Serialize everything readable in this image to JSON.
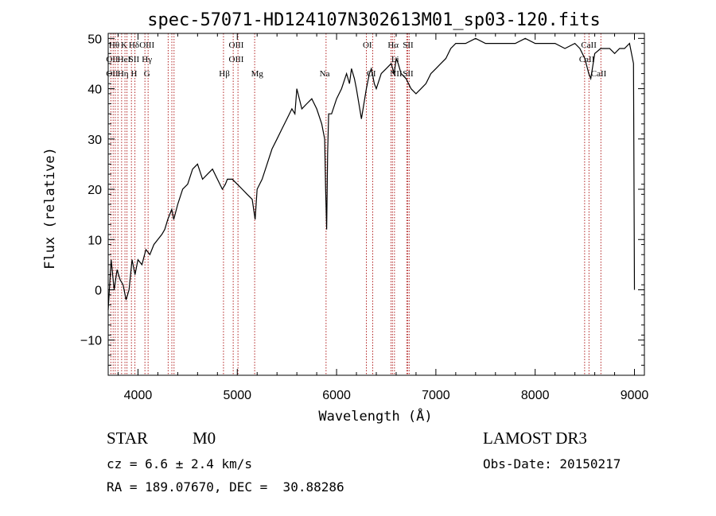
{
  "chart_data": {
    "type": "line",
    "title": "spec-57071-HD124107N302613M01_sp03-120.fits",
    "xlabel": "Wavelength (Å)",
    "ylabel": "Flux (relative)",
    "xlim": [
      3700,
      9100
    ],
    "ylim": [
      -17,
      51
    ],
    "xticks": [
      4000,
      5000,
      6000,
      7000,
      8000,
      9000
    ],
    "yticks": [
      -10,
      0,
      10,
      20,
      30,
      40,
      50
    ],
    "grid": false,
    "line_color": "#000000",
    "marker_color": "#b22222",
    "series": [
      {
        "x": [
          3700,
          3730,
          3760,
          3790,
          3820,
          3850,
          3880,
          3910,
          3940,
          3970,
          4000,
          4040,
          4080,
          4120,
          4160,
          4200,
          4240,
          4270,
          4300,
          4320,
          4340,
          4360,
          4400,
          4450,
          4500,
          4550,
          4600,
          4650,
          4700,
          4750,
          4800,
          4850,
          4880,
          4900,
          4950,
          5000,
          5050,
          5100,
          5150,
          5180,
          5200,
          5250,
          5300,
          5350,
          5400,
          5450,
          5500,
          5550,
          5580,
          5600,
          5650,
          5700,
          5750,
          5800,
          5850,
          5880,
          5890,
          5900,
          5910,
          5920,
          5950,
          6000,
          6050,
          6100,
          6130,
          6150,
          6180,
          6200,
          6250,
          6300,
          6330,
          6350,
          6380,
          6400,
          6450,
          6500,
          6550,
          6580,
          6600,
          6620,
          6650,
          6700,
          6750,
          6800,
          6850,
          6900,
          6950,
          7000,
          7050,
          7100,
          7150,
          7200,
          7300,
          7400,
          7500,
          7600,
          7700,
          7800,
          7900,
          8000,
          8100,
          8200,
          8300,
          8400,
          8450,
          8500,
          8540,
          8560,
          8600,
          8660,
          8700,
          8750,
          8800,
          8850,
          8900,
          8950,
          8990,
          9000
        ],
        "y": [
          -4,
          6,
          0,
          4,
          2,
          1,
          -2,
          0,
          6,
          3,
          6,
          5,
          8,
          7,
          9,
          10,
          11,
          12,
          14,
          15,
          16,
          14,
          17,
          20,
          21,
          24,
          25,
          22,
          23,
          24,
          22,
          20,
          21,
          22,
          22,
          21,
          20,
          19,
          18,
          14,
          20,
          22,
          25,
          28,
          30,
          32,
          34,
          36,
          35,
          40,
          36,
          37,
          38,
          36,
          33,
          30,
          20,
          12,
          27,
          35,
          35,
          38,
          40,
          43,
          41,
          44,
          42,
          40,
          34,
          40,
          43,
          44,
          41,
          40,
          43,
          44,
          45,
          43,
          46,
          45,
          43,
          42,
          40,
          39,
          40,
          41,
          43,
          44,
          45,
          46,
          48,
          49,
          49,
          50,
          49,
          49,
          49,
          49,
          50,
          49,
          49,
          49,
          48,
          49,
          48,
          46,
          43,
          42,
          47,
          48,
          48,
          48,
          47,
          48,
          48,
          49,
          45,
          0
        ]
      }
    ],
    "line_markers": [
      {
        "x": 3727,
        "label": "OII"
      },
      {
        "x": 3750,
        "label": "Hθ"
      },
      {
        "x": 3771,
        "label": "Hη"
      },
      {
        "x": 3798,
        "label": "Hη"
      },
      {
        "x": 3835,
        "label": "Hη"
      },
      {
        "x": 3869,
        "label": "HeI"
      },
      {
        "x": 3889,
        "label": "Hζ"
      },
      {
        "x": 3934,
        "label": "K"
      },
      {
        "x": 3969,
        "label": "H"
      },
      {
        "x": 4070,
        "label": "SII"
      },
      {
        "x": 4102,
        "label": "Hδ"
      },
      {
        "x": 4304,
        "label": "G"
      },
      {
        "x": 4341,
        "label": "Hγ"
      },
      {
        "x": 4363,
        "label": "OIII"
      },
      {
        "x": 4861,
        "label": "Hβ"
      },
      {
        "x": 4959,
        "label": "OIII"
      },
      {
        "x": 5007,
        "label": "OIII"
      },
      {
        "x": 5175,
        "label": "Mg"
      },
      {
        "x": 5894,
        "label": "Na"
      },
      {
        "x": 6300,
        "label": "OI"
      },
      {
        "x": 6364,
        "label": "OI"
      },
      {
        "x": 6548,
        "label": "NII"
      },
      {
        "x": 6563,
        "label": "Hα"
      },
      {
        "x": 6583,
        "label": "NII"
      },
      {
        "x": 6707,
        "label": "Li"
      },
      {
        "x": 6716,
        "label": "SII"
      },
      {
        "x": 6731,
        "label": "SII"
      },
      {
        "x": 8498,
        "label": "CaII"
      },
      {
        "x": 8542,
        "label": "CaII"
      },
      {
        "x": 8662,
        "label": "CaII"
      }
    ],
    "marker_labels": [
      {
        "x": 3760,
        "row": 0,
        "text": "Hθ"
      },
      {
        "x": 3860,
        "row": 0,
        "text": "K"
      },
      {
        "x": 3960,
        "row": 0,
        "text": "Hδ"
      },
      {
        "x": 4090,
        "row": 0,
        "text": "OIII"
      },
      {
        "x": 4990,
        "row": 0,
        "text": "OIII"
      },
      {
        "x": 6310,
        "row": 0,
        "text": "OI"
      },
      {
        "x": 6570,
        "row": 0,
        "text": "Hα"
      },
      {
        "x": 6720,
        "row": 0,
        "text": "SII"
      },
      {
        "x": 8540,
        "row": 0,
        "text": "CaII"
      },
      {
        "x": 3740,
        "row": 1,
        "text": "OII"
      },
      {
        "x": 3860,
        "row": 1,
        "text": "HeI"
      },
      {
        "x": 3960,
        "row": 1,
        "text": "SII"
      },
      {
        "x": 4090,
        "row": 1,
        "text": "Hγ"
      },
      {
        "x": 4990,
        "row": 1,
        "text": "OIII"
      },
      {
        "x": 6590,
        "row": 1,
        "text": "Li"
      },
      {
        "x": 8520,
        "row": 1,
        "text": "CaII"
      },
      {
        "x": 3740,
        "row": 2,
        "text": "OII"
      },
      {
        "x": 3850,
        "row": 2,
        "text": "Hη"
      },
      {
        "x": 3960,
        "row": 2,
        "text": "H"
      },
      {
        "x": 4090,
        "row": 2,
        "text": "G"
      },
      {
        "x": 4870,
        "row": 2,
        "text": "Hβ"
      },
      {
        "x": 5200,
        "row": 2,
        "text": "Mg"
      },
      {
        "x": 5880,
        "row": 2,
        "text": "Na"
      },
      {
        "x": 6350,
        "row": 2,
        "text": "OI"
      },
      {
        "x": 6600,
        "row": 2,
        "text": "NII"
      },
      {
        "x": 6720,
        "row": 2,
        "text": "SII"
      },
      {
        "x": 8640,
        "row": 2,
        "text": "CaII"
      }
    ]
  },
  "footer": {
    "object_class": "STAR",
    "subclass": "M0",
    "survey": "LAMOST DR3",
    "redshift": "cz = 6.6 ± 2.4 km/s",
    "obs_date": "Obs-Date: 20150217",
    "coords": "RA = 189.07670, DEC =  30.88286"
  }
}
